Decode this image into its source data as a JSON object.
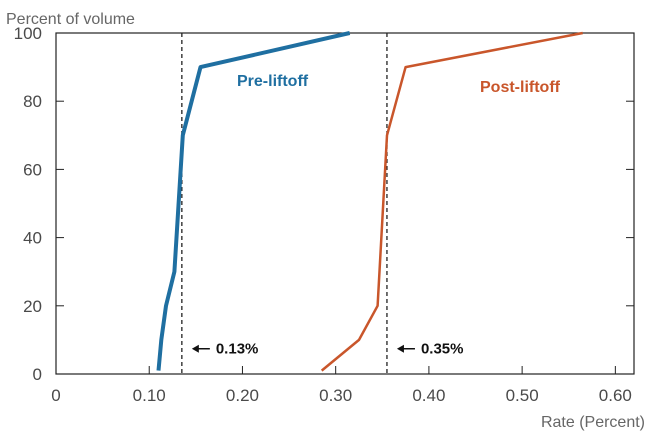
{
  "chart_data": {
    "type": "line",
    "ylabel": "Percent of volume",
    "xlabel": "Rate (Percent)",
    "xlim": [
      0,
      0.62
    ],
    "ylim": [
      0,
      100
    ],
    "xticks": [
      "0",
      "0.10",
      "0.20",
      "0.30",
      "0.40",
      "0.50",
      "0.60"
    ],
    "xtick_values": [
      0,
      0.1,
      0.2,
      0.3,
      0.4,
      0.5,
      0.6
    ],
    "yticks": [
      "0",
      "20",
      "40",
      "60",
      "80",
      "100"
    ],
    "ytick_values": [
      0,
      20,
      40,
      60,
      80,
      100
    ],
    "grid": false,
    "series": [
      {
        "name": "Pre-liftoff",
        "color": "#1f6fa1",
        "x": [
          0.11,
          0.113,
          0.118,
          0.127,
          0.136,
          0.155,
          0.315
        ],
        "y": [
          1,
          10,
          20,
          30,
          70,
          90,
          100
        ]
      },
      {
        "name": "Post-liftoff",
        "color": "#c9562b",
        "x": [
          0.285,
          0.325,
          0.345,
          0.355,
          0.375,
          0.565
        ],
        "y": [
          1,
          10,
          20,
          70,
          90,
          100
        ]
      }
    ],
    "reference_lines": [
      {
        "x": 0.135,
        "label": "0.13%",
        "arrow": "left",
        "label_y": 8
      },
      {
        "x": 0.355,
        "label": "0.35%",
        "arrow": "left",
        "label_y": 8
      }
    ]
  }
}
